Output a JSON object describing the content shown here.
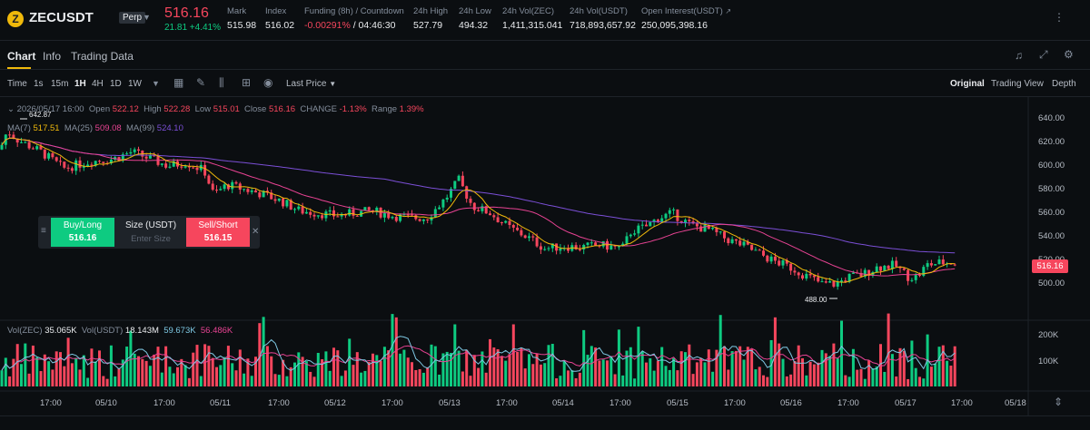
{
  "header": {
    "coin_glyph": "Z",
    "symbol": "ZECUSDT",
    "contract_type": "Perp",
    "last_price": "516.16",
    "change": "21.81 +4.41%",
    "stats": [
      {
        "label": "Mark",
        "value": "515.98"
      },
      {
        "label": "Index",
        "value": "516.02"
      },
      {
        "label": "Funding (8h) / Countdown",
        "value": "-0.00291%",
        "value2": "/ 04:46:30"
      },
      {
        "label": "24h High",
        "value": "527.79"
      },
      {
        "label": "24h Low",
        "value": "494.32"
      },
      {
        "label": "24h Vol(ZEC)",
        "value": "1,411,315.041"
      },
      {
        "label": "24h Vol(USDT)",
        "value": "718,893,657.92"
      },
      {
        "label": "Open Interest(USDT)",
        "value": "250,095,398.16"
      }
    ]
  },
  "tabs": [
    "Chart",
    "Info",
    "Trading Data"
  ],
  "toolbar": {
    "intervals": [
      "Time",
      "1s",
      "15m",
      "1H",
      "4H",
      "1D",
      "1W"
    ],
    "selected_interval": "1H",
    "price_type": "Last Price",
    "views": [
      "Original",
      "Trading View",
      "Depth"
    ],
    "selected_view": "Original"
  },
  "ohlc": {
    "datetime": "2026/05/17 16:00",
    "open_label": "Open",
    "open": "522.12",
    "high_label": "High",
    "high": "522.28",
    "low_label": "Low",
    "low": "515.01",
    "close_label": "Close",
    "close": "516.16",
    "change_label": "CHANGE",
    "change": "-1.13%",
    "range_label": "Range",
    "range": "1.39%"
  },
  "ma": {
    "ma7_label": "MA(7)",
    "ma7": "517.51",
    "ma25_label": "MA(25)",
    "ma25": "509.08",
    "ma99_label": "MA(99)",
    "ma99": "524.10",
    "colors": {
      "ma7": "#f0b90b",
      "ma25": "#e84393",
      "ma99": "#7b4fd6"
    }
  },
  "high_marker": "642.87",
  "low_marker": "488.00",
  "price_axis": [
    "640.00",
    "620.00",
    "600.00",
    "580.00",
    "560.00",
    "540.00",
    "520.00",
    "500.00"
  ],
  "current_price_tag": "516.16",
  "volume": {
    "label1": "Vol(ZEC)",
    "v1": "35.065K",
    "label2": "Vol(USDT)",
    "v2": "18.143M",
    "v3": "59.673K",
    "v4": "56.486K",
    "axis": [
      "200K",
      "100K"
    ]
  },
  "time_axis": [
    "17:00",
    "05/10",
    "17:00",
    "05/11",
    "17:00",
    "05/12",
    "17:00",
    "05/13",
    "17:00",
    "05/14",
    "17:00",
    "05/15",
    "17:00",
    "05/16",
    "17:00",
    "05/17",
    "17:00",
    "05/18"
  ],
  "order_panel": {
    "buy_label": "Buy/Long",
    "buy_price": "516.16",
    "size_label": "Size (USDT)",
    "size_placeholder": "Enter Size",
    "sell_label": "Sell/Short",
    "sell_price": "516.15"
  },
  "colors": {
    "up": "#0ecb81",
    "down": "#f6465d",
    "accent": "#f0b90b"
  }
}
